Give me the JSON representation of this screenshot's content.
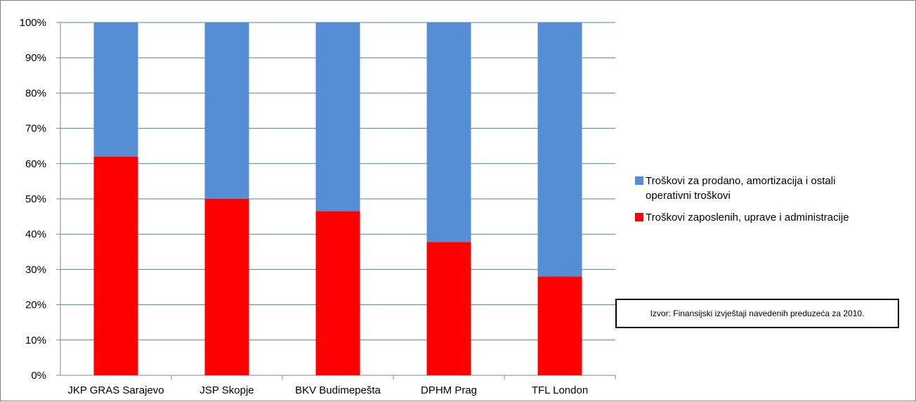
{
  "chart_data": {
    "type": "bar",
    "stacked": true,
    "percent_scale": true,
    "categories": [
      "JKP GRAS Sarajevo",
      "JSP Skopje",
      "BKV Budimepešta",
      "DPHM Prag",
      "TFL London"
    ],
    "series": [
      {
        "name": "Troškovi zaposlenih, uprave i administracije",
        "color": "#ff0000",
        "values": [
          62,
          50,
          46.5,
          37.8,
          28
        ]
      },
      {
        "name": "Troškovi za prodano, amortizacija  i ostali operativni troškovi",
        "color": "#558ed5",
        "values": [
          38,
          50,
          53.5,
          62.2,
          72
        ]
      }
    ],
    "ylim": [
      0,
      100
    ],
    "yticks": [
      "0%",
      "10%",
      "20%",
      "30%",
      "40%",
      "50%",
      "60%",
      "70%",
      "80%",
      "90%",
      "100%"
    ],
    "grid": true,
    "legend_position": "right"
  },
  "legend": {
    "items": [
      {
        "label_line1": "Troškovi za prodano, amortizacija  i ostali",
        "label_line2": "operativni troškovi",
        "color": "#558ed5"
      },
      {
        "label_line1": "Troškovi zaposlenih, uprave i administracije",
        "label_line2": "",
        "color": "#ff0000"
      }
    ]
  },
  "source_note": "Izvor: Finansijski izvještaji navedenih preduzeća za 2010."
}
